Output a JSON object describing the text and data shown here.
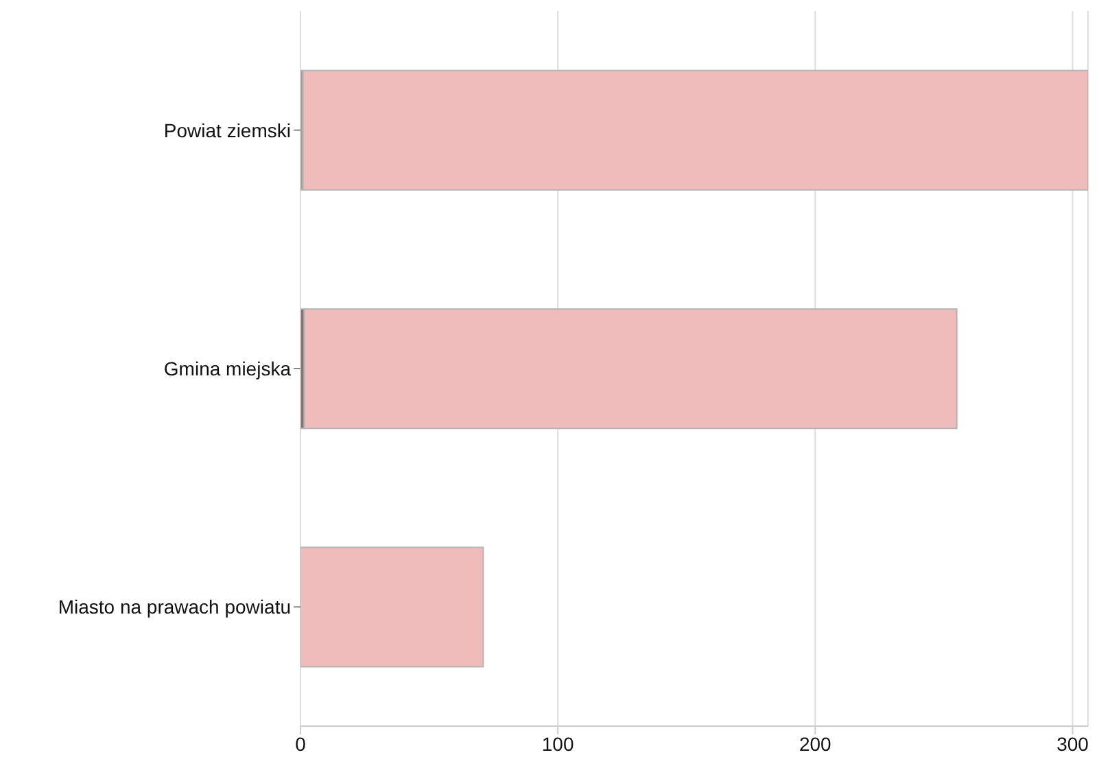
{
  "chart_data": {
    "type": "bar",
    "orientation": "horizontal",
    "stacked": true,
    "categories": [
      "Powiat ziemski",
      "Gmina miejska",
      "Miasto na prawach powiatu"
    ],
    "series": [
      {
        "colors": [
          "#a39b9b",
          "#8c7474",
          "#8c7474"
        ],
        "values": [
          1,
          1.5,
          0
        ]
      },
      {
        "color": "#efbbbb",
        "values": [
          305,
          253.5,
          71
        ]
      }
    ],
    "xlim": [
      0,
      306
    ],
    "xticks": [
      0,
      100,
      200,
      300
    ],
    "grid": "x"
  }
}
